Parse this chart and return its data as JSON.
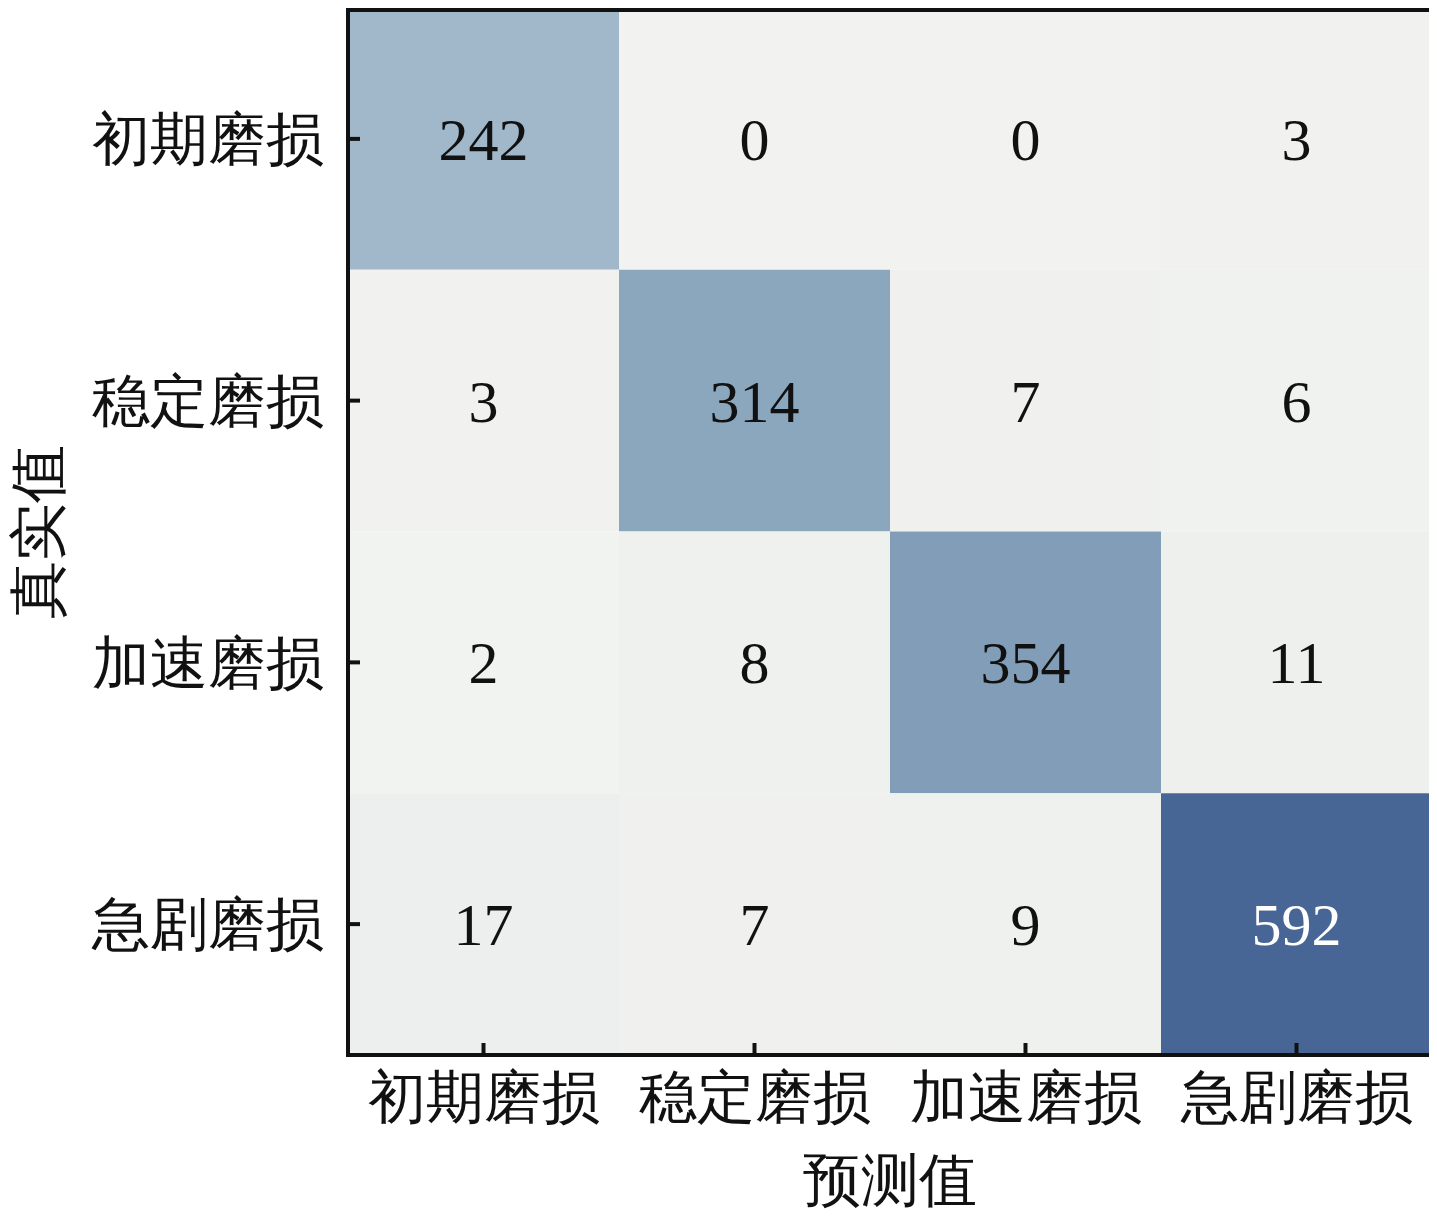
{
  "chart_data": {
    "type": "heatmap",
    "xlabel": "预测值",
    "ylabel": "真实值",
    "categories": [
      "初期磨损",
      "稳定磨损",
      "加速磨损",
      "急剧磨损"
    ],
    "y_categories": [
      "初期磨损",
      "稳定磨损",
      "加速磨损",
      "急剧磨损"
    ],
    "cells": [
      [
        242,
        0,
        0,
        3
      ],
      [
        3,
        314,
        7,
        6
      ],
      [
        2,
        8,
        354,
        11
      ],
      [
        17,
        7,
        9,
        592
      ]
    ],
    "data_labels": true
  }
}
